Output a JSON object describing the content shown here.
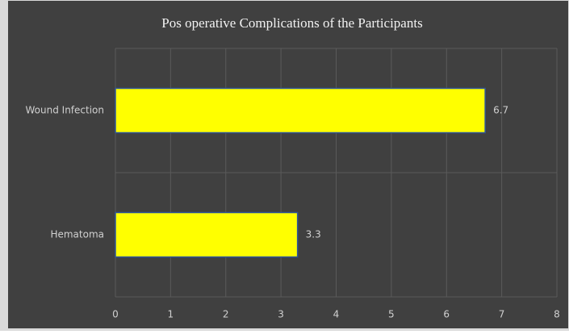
{
  "chart_data": {
    "type": "bar",
    "orientation": "horizontal",
    "title": "Pos operative Complications of the Participants",
    "categories": [
      "Wound Infection",
      "Hematoma"
    ],
    "values": [
      6.7,
      3.3
    ],
    "color": "#ffff00",
    "xlim": [
      0,
      8
    ],
    "xticks": [
      0,
      1,
      2,
      3,
      4,
      5,
      6,
      7,
      8
    ],
    "grid": true,
    "data_labels": true
  }
}
